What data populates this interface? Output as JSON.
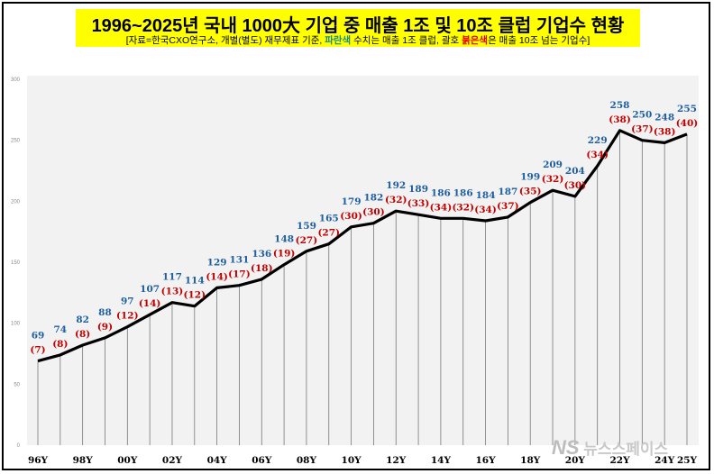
{
  "header": {
    "title": "1996~2025년 국내 1000大 기업 중 매출 1조 및 10조 클럽 기업수 현황",
    "subtitle_parts": [
      {
        "text": "[자료=한국CXO연구소, 개별(별도) 재무제표 기준, ",
        "style": "plain"
      },
      {
        "text": "파란색",
        "style": "blue"
      },
      {
        "text": " 수치는 매출 1조 클럽, 괄호 ",
        "style": "plain"
      },
      {
        "text": "붉은색",
        "style": "red"
      },
      {
        "text": "은 매출 10조 넘는 기업수]",
        "style": "plain"
      }
    ]
  },
  "watermark": {
    "logo": "NS",
    "text": "뉴스스페이스"
  },
  "chart_data": {
    "type": "line",
    "x": [
      "96Y",
      "97Y",
      "98Y",
      "99Y",
      "00Y",
      "01Y",
      "02Y",
      "03Y",
      "04Y",
      "05Y",
      "06Y",
      "07Y",
      "08Y",
      "09Y",
      "10Y",
      "11Y",
      "12Y",
      "13Y",
      "14Y",
      "15Y",
      "16Y",
      "17Y",
      "18Y",
      "19Y",
      "20Y",
      "21Y",
      "22Y",
      "23Y",
      "24Y",
      "25Y"
    ],
    "x_tick_labels": [
      "96Y",
      "98Y",
      "00Y",
      "02Y",
      "04Y",
      "06Y",
      "08Y",
      "10Y",
      "12Y",
      "14Y",
      "16Y",
      "18Y",
      "20Y",
      "22Y",
      "24Y",
      "25Y"
    ],
    "series": [
      {
        "values": [
          69,
          74,
          82,
          88,
          97,
          107,
          117,
          114,
          129,
          131,
          136,
          148,
          159,
          165,
          179,
          182,
          192,
          189,
          186,
          186,
          184,
          187,
          199,
          209,
          204,
          229,
          258,
          250,
          248,
          255
        ],
        "color": "#000000"
      }
    ],
    "over_10t_values": [
      7,
      8,
      8,
      9,
      12,
      14,
      13,
      12,
      14,
      17,
      18,
      19,
      27,
      27,
      30,
      30,
      32,
      33,
      34,
      32,
      34,
      37,
      35,
      32,
      30,
      34,
      38,
      37,
      38,
      40
    ],
    "y_ticks": [
      0,
      50,
      100,
      150,
      200,
      250,
      300
    ],
    "ylim": [
      0,
      300
    ],
    "grid": false,
    "drop_lines": true,
    "colors": {
      "over_1t_label": "#1f5fa0",
      "over_10t_label": "#c00000",
      "plot_bg": "#f2f2f2",
      "line": "#000000"
    }
  }
}
